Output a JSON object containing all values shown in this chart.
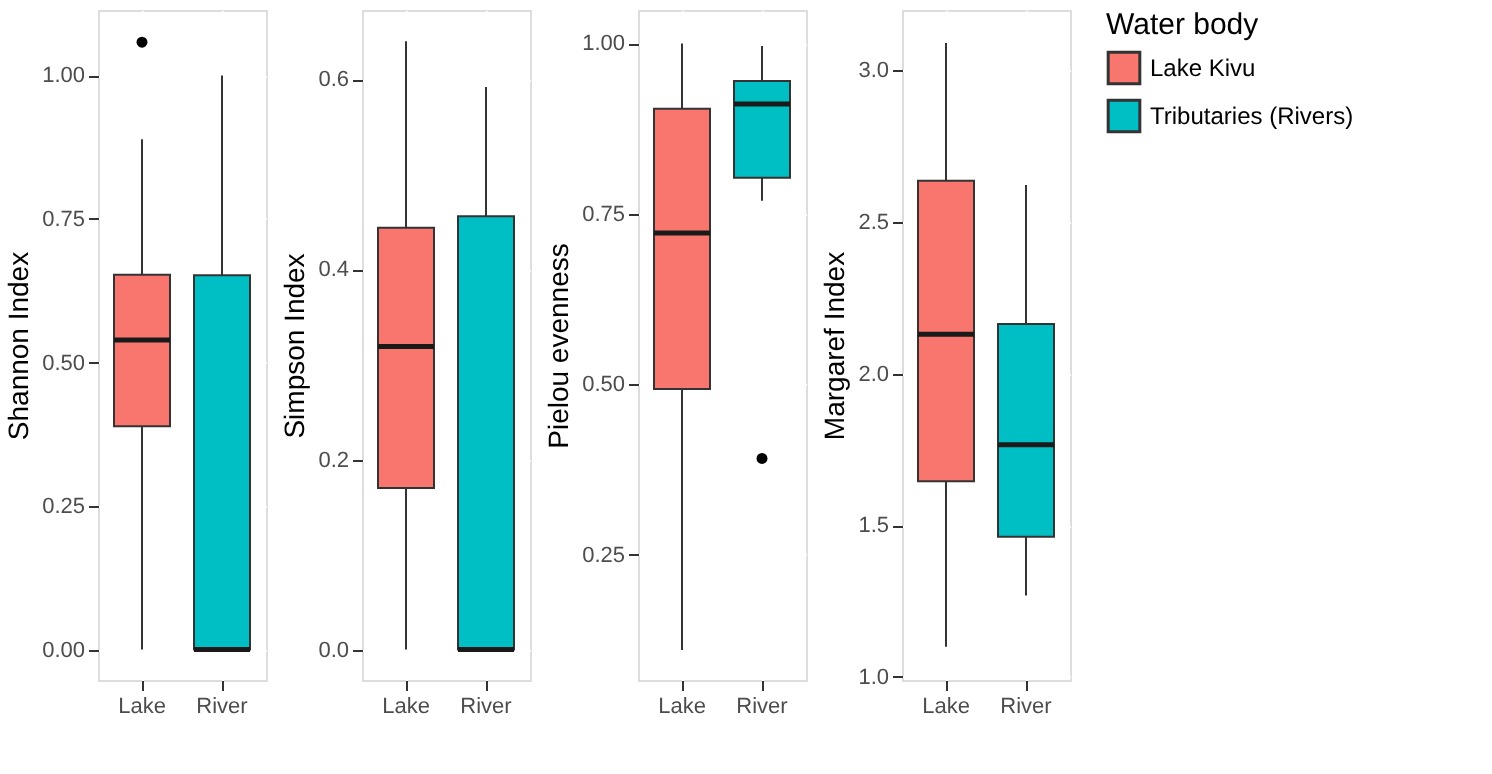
{
  "chart_data": [
    {
      "type": "box",
      "ylabel": "Shannon Index",
      "categories": [
        "Lake",
        "River"
      ],
      "ylim": [
        -0.053,
        1.114
      ],
      "yticks": [
        {
          "value": 0,
          "label": "0.00"
        },
        0.25,
        {
          "value": 0.5,
          "label": "0.50"
        },
        0.75,
        {
          "value": 1,
          "label": "1.00"
        }
      ],
      "grid": true,
      "series": [
        {
          "color": "#f8766d",
          "boxes": [
            {
              "low": 0,
              "q1": 0.389,
              "median": 0.539,
              "q3": 0.653,
              "high": 0.889,
              "outliers": [
                1.058
              ]
            },
            null
          ]
        },
        {
          "color": "#00bfc4",
          "boxes": [
            null,
            {
              "low": 0,
              "q1": 0,
              "median": 0,
              "q3": 0.652,
              "high": 1.0
            }
          ]
        }
      ]
    },
    {
      "type": "box",
      "ylabel": "Simpson Index",
      "categories": [
        "Lake",
        "River"
      ],
      "ylim": [
        -0.032,
        0.673
      ],
      "yticks": [
        {
          "value": 0,
          "label": "0.0"
        },
        0.2,
        0.4,
        0.6
      ],
      "grid": true,
      "series": [
        {
          "color": "#f8766d",
          "boxes": [
            {
              "low": 0,
              "q1": 0.17,
              "median": 0.319,
              "q3": 0.444,
              "high": 0.64
            },
            null
          ]
        },
        {
          "color": "#00bfc4",
          "boxes": [
            null,
            {
              "low": 0,
              "q1": 0,
              "median": 0,
              "q3": 0.456,
              "high": 0.592
            }
          ]
        }
      ]
    },
    {
      "type": "box",
      "ylabel": "Pielou evenness",
      "categories": [
        "Lake",
        "River"
      ],
      "ylim": [
        0.066,
        1.049
      ],
      "yticks": [
        0.25,
        {
          "value": 0.5,
          "label": "0.50"
        },
        0.75,
        {
          "value": 1,
          "label": "1.00"
        }
      ],
      "grid": true,
      "series": [
        {
          "color": "#f8766d",
          "boxes": [
            {
              "low": 0.11,
              "q1": 0.493,
              "median": 0.722,
              "q3": 0.904,
              "high": 1.0
            },
            null
          ]
        },
        {
          "color": "#00bfc4",
          "boxes": [
            null,
            {
              "low": 0.769,
              "q1": 0.803,
              "median": 0.911,
              "q3": 0.945,
              "high": 0.996,
              "outliers": [
                0.391
              ]
            }
          ]
        }
      ]
    },
    {
      "type": "box",
      "ylabel": "Margaref Index",
      "categories": [
        "Lake",
        "River"
      ],
      "ylim": [
        0.99,
        3.199
      ],
      "yticks": [
        {
          "value": 1,
          "label": "1.0"
        },
        1.5,
        {
          "value": 2,
          "label": "2.0"
        },
        2.5,
        {
          "value": 3,
          "label": "3.0"
        }
      ],
      "grid": true,
      "legend": "right",
      "legend_title": "Water body",
      "series": [
        {
          "name": "Lake Kivu",
          "color": "#f8766d",
          "boxes": [
            {
              "low": 1.1,
              "q1": 1.645,
              "median": 2.13,
              "q3": 2.636,
              "high": 3.09
            },
            null
          ]
        },
        {
          "name": "Tributaries (Rivers)",
          "color": "#00bfc4",
          "boxes": [
            null,
            {
              "low": 1.269,
              "q1": 1.462,
              "median": 1.766,
              "q3": 2.164,
              "high": 2.622
            }
          ]
        }
      ]
    }
  ]
}
